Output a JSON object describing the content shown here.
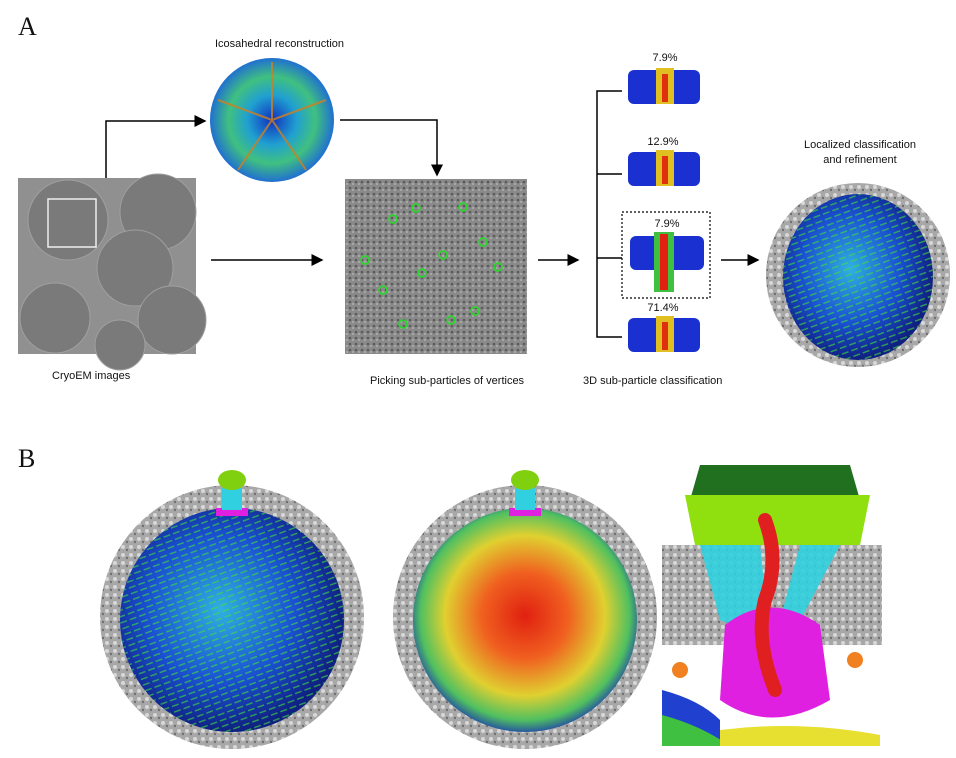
{
  "panel_a": {
    "letter": "A",
    "icosahedral_label": "Icosahedral reconstruction",
    "cryoem_label": "CryoEM images",
    "picking_label": "Picking sub-particles of vertices",
    "classification_label": "3D sub-particle classification",
    "localized_label_line1": "Localized classification",
    "localized_label_line2": "and refinement",
    "classes": [
      {
        "percent": "7.9%",
        "selected": false
      },
      {
        "percent": "12.9%",
        "selected": false
      },
      {
        "percent": "7.9%",
        "selected": true
      },
      {
        "percent": "71.4%",
        "selected": false
      }
    ]
  },
  "panel_b": {
    "letter": "B"
  },
  "colors": {
    "capsid_blue": "#1a2fd0",
    "genome_red": "#e02020",
    "portal_magenta": "#e020e0",
    "tail_green": "#88e010",
    "fiber_cyan": "#30d0e0",
    "pick_circle_green": "#22dd22"
  }
}
